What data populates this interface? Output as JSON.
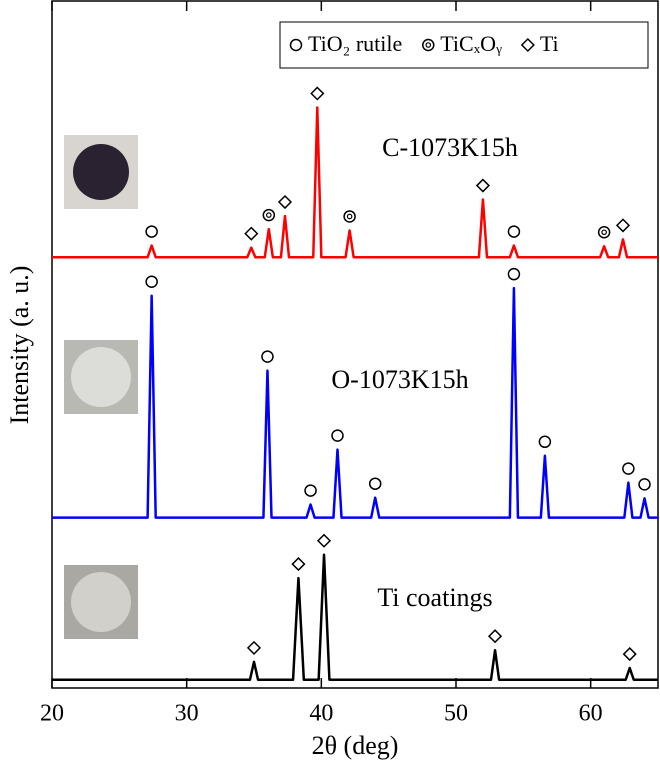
{
  "chart_data": {
    "type": "line",
    "x_label": "2θ  (deg)",
    "y_label": "Intensity  (a. u.)",
    "xlim": [
      20,
      65
    ],
    "ylim": [
      0,
      100
    ],
    "xticks": [
      20,
      30,
      40,
      50,
      60
    ],
    "legend": [
      {
        "label": "TiO₂ rutile",
        "marker": "circle"
      },
      {
        "label": "TiCₓOᵧ",
        "marker": "double-circle"
      },
      {
        "label": "Ti",
        "marker": "diamond"
      }
    ],
    "series": [
      {
        "name": "C-1073K15h",
        "color": "#ff0000",
        "x": [
          20,
          27.1,
          27.4,
          27.7,
          34.5,
          34.8,
          35.1,
          35.8,
          36.1,
          36.4,
          37.0,
          37.3,
          37.6,
          39.4,
          39.7,
          40.0,
          41.8,
          42.1,
          42.4,
          51.7,
          52.0,
          52.3,
          54.0,
          54.3,
          54.6,
          60.7,
          61.0,
          61.3,
          62.1,
          62.4,
          62.7,
          65
        ],
        "values": [
          62.7,
          62.7,
          64.4,
          62.7,
          62.7,
          64.1,
          62.7,
          62.7,
          66.8,
          62.7,
          62.7,
          68.7,
          62.7,
          62.7,
          84.5,
          62.7,
          62.7,
          66.6,
          62.7,
          62.7,
          71.1,
          62.7,
          62.7,
          64.4,
          62.7,
          62.7,
          64.3,
          62.7,
          62.7,
          65.3,
          62.7,
          62.7
        ],
        "peaks": [
          {
            "x": 27.4,
            "marker": "circle"
          },
          {
            "x": 34.8,
            "marker": "diamond"
          },
          {
            "x": 36.1,
            "marker": "double-circle"
          },
          {
            "x": 37.3,
            "marker": "diamond"
          },
          {
            "x": 39.7,
            "marker": "diamond"
          },
          {
            "x": 42.1,
            "marker": "double-circle"
          },
          {
            "x": 52.0,
            "marker": "diamond"
          },
          {
            "x": 54.3,
            "marker": "circle"
          },
          {
            "x": 61.0,
            "marker": "double-circle"
          },
          {
            "x": 62.4,
            "marker": "diamond"
          }
        ]
      },
      {
        "name": "O-1073K15h",
        "color": "#0000ff",
        "x": [
          20,
          27.1,
          27.4,
          27.7,
          35.7,
          36.0,
          36.3,
          38.9,
          39.2,
          39.5,
          40.9,
          41.2,
          41.5,
          43.7,
          44.0,
          44.3,
          54.0,
          54.3,
          54.6,
          56.3,
          56.6,
          56.9,
          62.5,
          62.8,
          63.1,
          63.7,
          64.0,
          64.3,
          65
        ],
        "values": [
          24.8,
          24.8,
          57.1,
          24.8,
          24.8,
          46.2,
          24.8,
          24.8,
          26.7,
          24.8,
          24.8,
          34.7,
          24.8,
          24.8,
          27.7,
          24.8,
          24.8,
          58.2,
          24.8,
          24.8,
          33.8,
          24.8,
          24.8,
          29.9,
          24.8,
          24.8,
          27.6,
          24.8,
          24.8
        ],
        "peaks": [
          {
            "x": 27.4,
            "marker": "circle"
          },
          {
            "x": 36.0,
            "marker": "circle"
          },
          {
            "x": 39.2,
            "marker": "circle"
          },
          {
            "x": 41.2,
            "marker": "circle"
          },
          {
            "x": 44.0,
            "marker": "circle"
          },
          {
            "x": 54.3,
            "marker": "circle"
          },
          {
            "x": 56.6,
            "marker": "circle"
          },
          {
            "x": 62.8,
            "marker": "circle"
          },
          {
            "x": 64.0,
            "marker": "circle"
          }
        ]
      },
      {
        "name": "Ti coatings",
        "color": "#000000",
        "x": [
          20,
          34.7,
          35.0,
          35.3,
          37.9,
          38.3,
          38.7,
          39.8,
          40.2,
          40.6,
          52.6,
          52.9,
          53.2,
          62.6,
          62.9,
          63.2,
          65
        ],
        "values": [
          1.2,
          1.2,
          3.8,
          1.2,
          1.2,
          16,
          1.2,
          1.2,
          19.4,
          1.2,
          1.2,
          5.5,
          1.2,
          1.2,
          2.9,
          1.2,
          1.2
        ],
        "peaks": [
          {
            "x": 35.0,
            "marker": "diamond"
          },
          {
            "x": 38.3,
            "marker": "diamond"
          },
          {
            "x": 40.2,
            "marker": "diamond"
          },
          {
            "x": 52.9,
            "marker": "diamond"
          },
          {
            "x": 62.9,
            "marker": "diamond"
          }
        ]
      }
    ]
  }
}
